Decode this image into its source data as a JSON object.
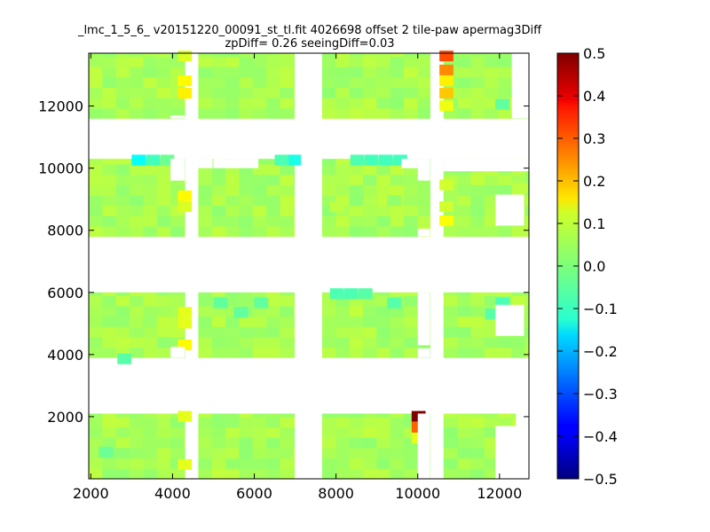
{
  "chart_data": {
    "type": "heatmap",
    "title_line1": "_lmc_1_5_6_ v20151220_00091_st_tl.fit 4026698 offset 2 tile-paw apermag3Diff",
    "title_line2": "zpDiff= 0.26 seeingDiff=0.03",
    "xlabel": "",
    "ylabel": "",
    "xlim": [
      1950,
      12720
    ],
    "ylim": [
      0,
      13700
    ],
    "xticks": [
      2000,
      4000,
      6000,
      8000,
      10000,
      12000
    ],
    "yticks": [
      2000,
      4000,
      6000,
      8000,
      10000,
      12000
    ],
    "colorbar": {
      "colormap": "jet",
      "range": [
        -0.5,
        0.5
      ],
      "ticks": [
        0.5,
        0.4,
        0.3,
        0.2,
        0.1,
        0.0,
        -0.1,
        -0.2,
        -0.3,
        -0.4,
        -0.5
      ],
      "tick_labels": [
        "0.5",
        "0.4",
        "0.3",
        "0.2",
        "0.1",
        "0.0",
        "−0.1",
        "−0.2",
        "−0.3",
        "−0.4",
        "−0.5"
      ]
    },
    "cell_size": [
      333,
      333
    ],
    "detector_columns": [
      [
        1950,
        3950
      ],
      [
        3950,
        4300
      ],
      [
        4630,
        6980
      ],
      [
        7660,
        10000
      ],
      [
        10000,
        10300
      ],
      [
        10630,
        12720
      ]
    ],
    "detector_rows": [
      [
        0,
        2100
      ],
      [
        3900,
        6000
      ],
      [
        7800,
        10300
      ],
      [
        11600,
        13700
      ]
    ],
    "base_value": 0.04,
    "highlight_cells": [
      {
        "x": 9850,
        "y": 1850,
        "value": 0.5
      },
      {
        "x": 9850,
        "y": 1500,
        "value": 0.28
      },
      {
        "x": 9850,
        "y": 1150,
        "value": 0.1
      },
      {
        "x": 4130,
        "y": 1850,
        "value": 0.1
      },
      {
        "x": 4130,
        "y": 300,
        "value": 0.1
      },
      {
        "x": 4130,
        "y": 5200,
        "value": 0.1
      },
      {
        "x": 4130,
        "y": 4850,
        "value": 0.1
      },
      {
        "x": 4130,
        "y": 4150,
        "value": 0.13
      },
      {
        "x": 4130,
        "y": 8950,
        "value": 0.13
      },
      {
        "x": 4130,
        "y": 8600,
        "value": 0.09
      },
      {
        "x": 4130,
        "y": 13450,
        "value": 0.09
      },
      {
        "x": 4130,
        "y": 12650,
        "value": 0.13
      },
      {
        "x": 4130,
        "y": 12250,
        "value": 0.14
      },
      {
        "x": 10530,
        "y": 13450,
        "value": 0.3
      },
      {
        "x": 10530,
        "y": 13000,
        "value": 0.24
      },
      {
        "x": 10530,
        "y": 12650,
        "value": 0.14
      },
      {
        "x": 10530,
        "y": 12250,
        "value": 0.18
      },
      {
        "x": 10530,
        "y": 11850,
        "value": 0.11
      },
      {
        "x": 10530,
        "y": 8150,
        "value": 0.12
      },
      {
        "x": 10530,
        "y": 8600,
        "value": 0.08
      },
      {
        "x": 10530,
        "y": 9300,
        "value": 0.08
      },
      {
        "x": 2650,
        "y": 3700,
        "value": -0.04
      },
      {
        "x": 3000,
        "y": 10100,
        "value": -0.12
      },
      {
        "x": 3350,
        "y": 10100,
        "value": -0.06
      },
      {
        "x": 3700,
        "y": 10100,
        "value": -0.02
      },
      {
        "x": 6800,
        "y": 10100,
        "value": -0.1
      },
      {
        "x": 6500,
        "y": 10100,
        "value": -0.05
      },
      {
        "x": 8350,
        "y": 10100,
        "value": -0.05
      },
      {
        "x": 8700,
        "y": 10100,
        "value": -0.06
      },
      {
        "x": 9050,
        "y": 10100,
        "value": -0.06
      },
      {
        "x": 9400,
        "y": 10100,
        "value": -0.06
      },
      {
        "x": 7850,
        "y": 5800,
        "value": -0.05
      },
      {
        "x": 8200,
        "y": 5800,
        "value": -0.05
      },
      {
        "x": 8550,
        "y": 5800,
        "value": -0.04
      },
      {
        "x": 9250,
        "y": 5500,
        "value": -0.04
      },
      {
        "x": 11650,
        "y": 5150,
        "value": -0.04
      },
      {
        "x": 11900,
        "y": 5500,
        "value": -0.05
      },
      {
        "x": 5000,
        "y": 5500,
        "value": -0.03
      },
      {
        "x": 5500,
        "y": 5200,
        "value": -0.03
      },
      {
        "x": 6000,
        "y": 5500,
        "value": -0.03
      },
      {
        "x": 2200,
        "y": 700,
        "value": -0.02
      },
      {
        "x": 11900,
        "y": 11900,
        "value": -0.03
      },
      {
        "x": 12350,
        "y": 9200,
        "value": 0.06
      },
      {
        "x": 9250,
        "y": 8800,
        "value": 0.02
      },
      {
        "x": 7850,
        "y": 8600,
        "value": 0.06
      }
    ],
    "blank_cells": [
      {
        "x": 11900,
        "y": 4600,
        "w": 700,
        "h": 1000
      },
      {
        "x": 11900,
        "y": 8150,
        "w": 700,
        "h": 1000
      },
      {
        "x": 11900,
        "y": 0,
        "w": 700,
        "h": 1700
      },
      {
        "x": 12300,
        "y": 11600,
        "w": 420,
        "h": 2100
      },
      {
        "x": 5000,
        "y": 10000,
        "w": 400,
        "h": 300
      },
      {
        "x": 4630,
        "y": 10000,
        "w": 350,
        "h": 300
      },
      {
        "x": 5400,
        "y": 10000,
        "w": 700,
        "h": 300
      },
      {
        "x": 7000,
        "y": 10000,
        "w": 0,
        "h": 300
      },
      {
        "x": 10000,
        "y": 9600,
        "w": 300,
        "h": 700
      },
      {
        "x": 10630,
        "y": 9900,
        "w": 2090,
        "h": 400
      },
      {
        "x": 9600,
        "y": 10000,
        "w": 400,
        "h": 300
      },
      {
        "x": 3950,
        "y": 9600,
        "w": 350,
        "h": 700
      },
      {
        "x": 3950,
        "y": 3900,
        "w": 350,
        "h": 350
      },
      {
        "x": 10000,
        "y": 3900,
        "w": 300,
        "h": 300
      },
      {
        "x": 10000,
        "y": 4300,
        "w": 300,
        "h": 1700
      },
      {
        "x": 10000,
        "y": 0,
        "w": 300,
        "h": 2100
      },
      {
        "x": 10000,
        "y": 7800,
        "w": 300,
        "h": 250
      },
      {
        "x": 12400,
        "y": 0,
        "w": 320,
        "h": 2100
      },
      {
        "x": 3950,
        "y": 11600,
        "w": 350,
        "h": 100
      }
    ]
  }
}
